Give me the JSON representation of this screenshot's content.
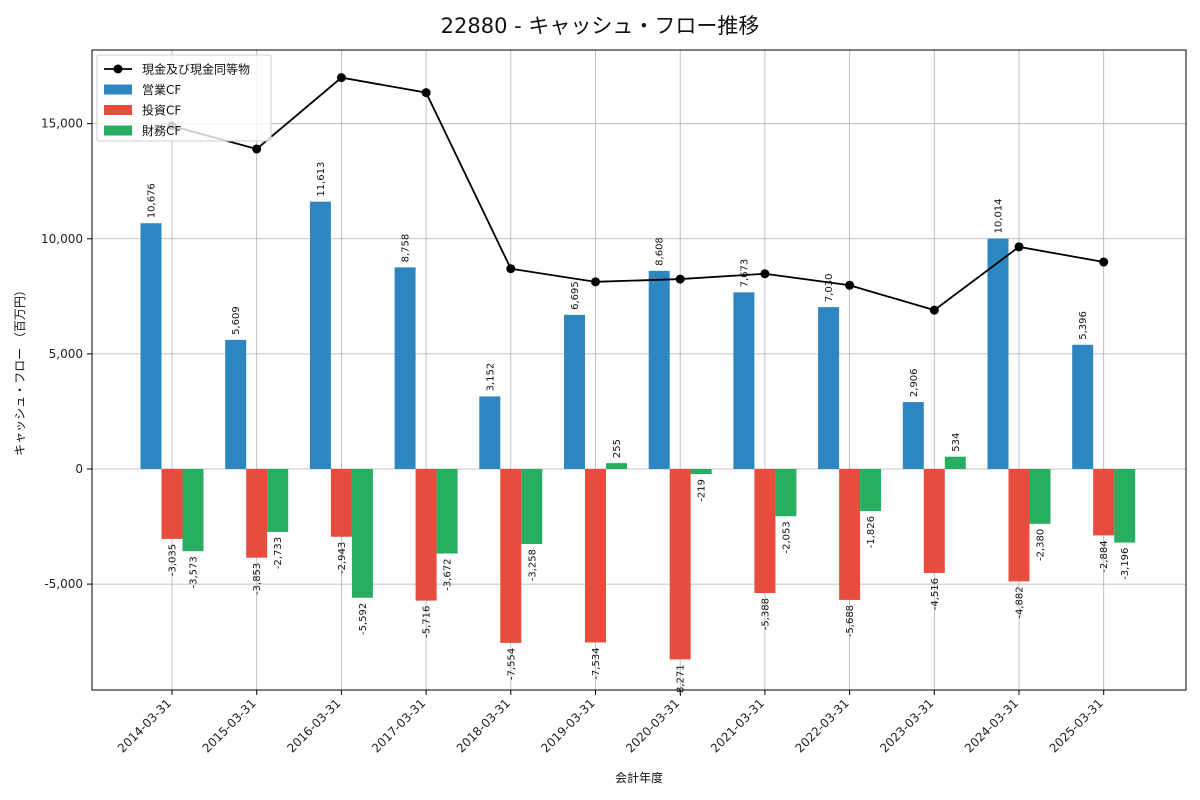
{
  "chart_data": {
    "type": "bar",
    "title": "22880 - キャッシュ・フロー推移",
    "xlabel": "会計年度",
    "ylabel": "キャッシュ・フロー （百万円）",
    "categories": [
      "2014-03-31",
      "2015-03-31",
      "2016-03-31",
      "2017-03-31",
      "2018-03-31",
      "2019-03-31",
      "2020-03-31",
      "2021-03-31",
      "2022-03-31",
      "2023-03-31",
      "2024-03-31",
      "2025-03-31"
    ],
    "series": [
      {
        "name": "営業CF",
        "kind": "bar",
        "color": "#2e86c1",
        "values": [
          10676,
          5609,
          11613,
          8758,
          3152,
          6695,
          8608,
          7673,
          7030,
          2906,
          10014,
          5396
        ],
        "labels": [
          "10,676",
          "5,609",
          "11,613",
          "8,758",
          "3,152",
          "6,695",
          "8,608",
          "7,673",
          "7,030",
          "2,906",
          "10,014",
          "5,396"
        ]
      },
      {
        "name": "投資CF",
        "kind": "bar",
        "color": "#e74c3c",
        "values": [
          -3035,
          -3853,
          -2943,
          -5716,
          -7554,
          -7534,
          -8271,
          -5388,
          -5688,
          -4516,
          -4882,
          -2884
        ],
        "labels": [
          "-3,035",
          "-3,853",
          "-2,943",
          "-5,716",
          "-7,554",
          "-7,534",
          "-8,271",
          "-5,388",
          "-5,688",
          "-4,516",
          "-4,882",
          "-2,884"
        ]
      },
      {
        "name": "財務CF",
        "kind": "bar",
        "color": "#27ae60",
        "values": [
          -3573,
          -2733,
          -5592,
          -3672,
          -3258,
          255,
          -219,
          -2053,
          -1826,
          534,
          -2380,
          -3196
        ],
        "labels": [
          "-3,573",
          "-2,733",
          "-5,592",
          "-3,672",
          "-3,258",
          "255",
          "-219",
          "-2,053",
          "-1,826",
          "534",
          "-2,380",
          "-3,196"
        ]
      },
      {
        "name": "現金及び現金同等物",
        "kind": "line",
        "color": "#000000",
        "values": [
          14900,
          13900,
          17000,
          16350,
          8700,
          8130,
          8250,
          8480,
          7980,
          6900,
          9650,
          8990
        ]
      }
    ],
    "ylim": [
      -9600,
      18200
    ],
    "yticks": [
      -5000,
      0,
      5000,
      10000,
      15000
    ],
    "ytick_labels": [
      "-5,000",
      "0",
      "5,000",
      "10,000",
      "15,000"
    ],
    "grid": true,
    "legend": "top-left"
  }
}
